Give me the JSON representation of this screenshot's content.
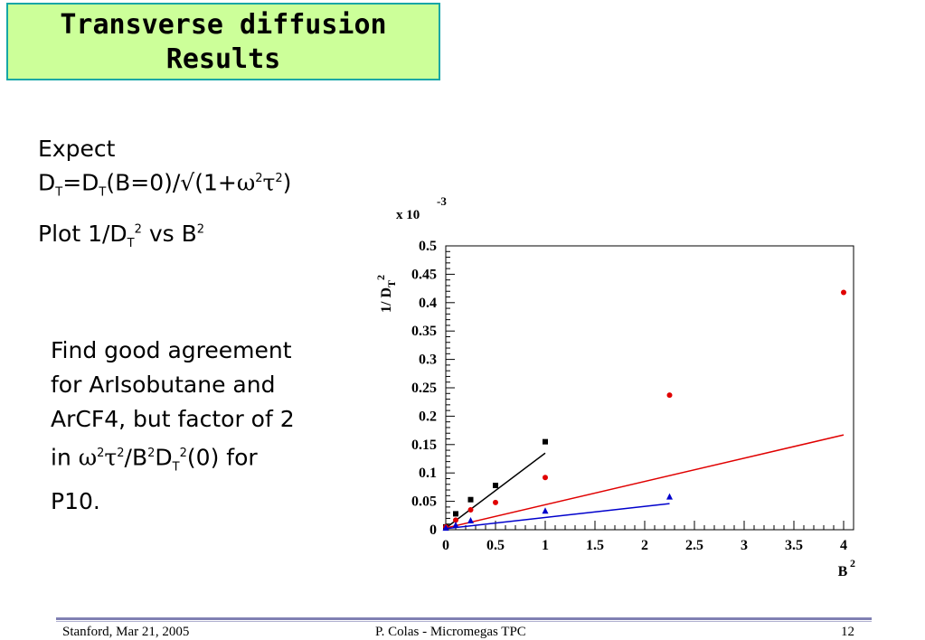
{
  "slide": {
    "title_line1": "Transverse diffusion",
    "title_line2": "Results",
    "expect_label": "Expect",
    "formula": {
      "d1": "D",
      "s1": "T",
      "eq": "=D",
      "s2": "T",
      "mid": "(B=0)/√(1+",
      "omega": "ω",
      "sq1": "2",
      "tau": "τ",
      "sq2": "2",
      "close": ")"
    },
    "plot_text": {
      "a": "Plot 1/D",
      "s": "T",
      "sq1": "2",
      "b": " vs B",
      "sq2": "2"
    },
    "find_text": {
      "l1": "Find good agreement",
      "l2": "for ArIsobutane and",
      "l3": "ArCF4, but factor of 2",
      "l4a": "in ",
      "omega": "ω",
      "p1": "2",
      "tau": "τ",
      "p2": "2",
      "l4b": "/B",
      "p3": "2",
      "l4c": "D",
      "s1": "T",
      "p4": "2",
      "l4d": "(0) for",
      "l5": "P10."
    },
    "footer": {
      "left": "Stanford,  Mar 21, 2005",
      "center": "P. Colas  -  Micromegas TPC",
      "right": "12"
    }
  },
  "chart_data": {
    "type": "scatter",
    "multiplier": "x 10",
    "multiplier_exp": "-3",
    "ylabel": "1/ D",
    "ylabel_sub": "T",
    "ylabel_sup": "2",
    "xlabel": "B",
    "xlabel_sup": "2",
    "xlim": [
      0,
      4.1
    ],
    "ylim": [
      0,
      0.5
    ],
    "xticks": [
      "0",
      "0.5",
      "1",
      "1.5",
      "2",
      "2.5",
      "3",
      "3.5",
      "4"
    ],
    "yticks": [
      "0",
      "0.05",
      "0.1",
      "0.15",
      "0.2",
      "0.25",
      "0.3",
      "0.35",
      "0.4",
      "0.45",
      "0.5"
    ],
    "series": [
      {
        "marker": "square",
        "color": "#000000",
        "x": [
          0,
          0.1,
          0.25,
          0.5,
          1.0
        ],
        "y": [
          0.005,
          0.028,
          0.053,
          0.078,
          0.155
        ],
        "fit": [
          [
            0,
            0.003
          ],
          [
            1.0,
            0.135
          ]
        ]
      },
      {
        "marker": "circle",
        "color": "#e00000",
        "x": [
          0,
          0.1,
          0.25,
          0.5,
          1.0,
          2.25,
          4.0
        ],
        "y": [
          0.005,
          0.017,
          0.035,
          0.048,
          0.092,
          0.237,
          0.418
        ],
        "fit": [
          [
            0,
            0.003
          ],
          [
            4.0,
            0.167
          ]
        ]
      },
      {
        "marker": "triangle",
        "color": "#0000cc",
        "x": [
          0,
          0.1,
          0.25,
          1.0,
          2.25
        ],
        "y": [
          0.003,
          0.008,
          0.016,
          0.033,
          0.058
        ],
        "fit": [
          [
            0,
            0.002
          ],
          [
            2.25,
            0.046
          ]
        ]
      }
    ]
  }
}
